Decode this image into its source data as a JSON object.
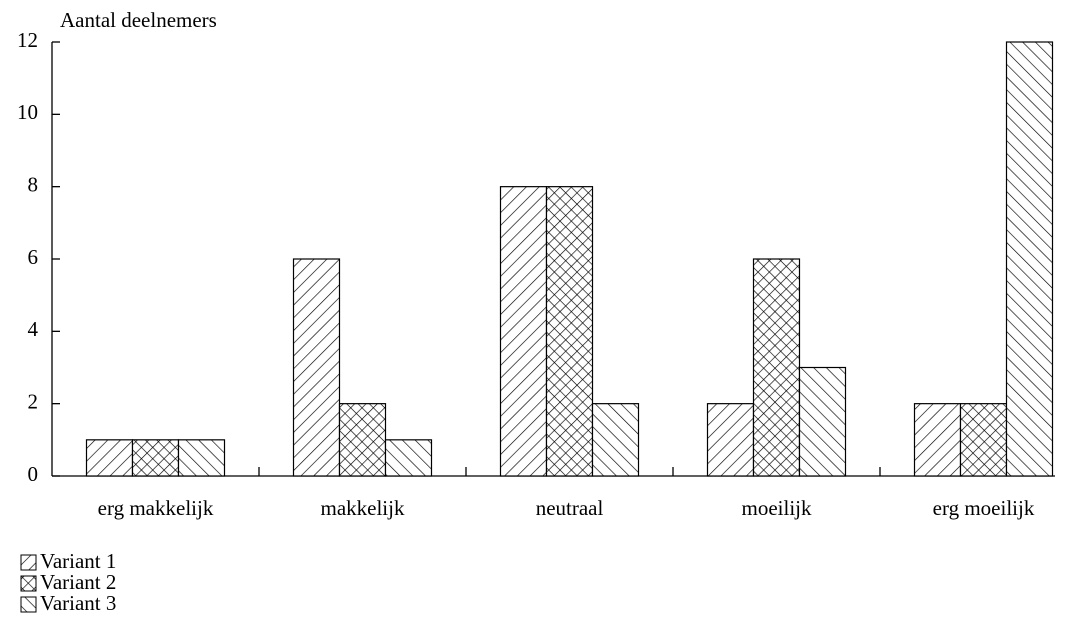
{
  "chart_data": {
    "type": "bar",
    "y_label": "Aantal deelnemers",
    "categories": [
      "erg makkelijk",
      "makkelijk",
      "neutraal",
      "moeilijk",
      "erg moeilijk"
    ],
    "series": [
      {
        "name": "Variant 1",
        "color": "#000000",
        "pattern": "diagonal",
        "values": [
          1,
          6,
          8,
          2,
          2
        ]
      },
      {
        "name": "Variant 2",
        "color": "#000000",
        "pattern": "crosshatch",
        "values": [
          1,
          2,
          8,
          6,
          2
        ]
      },
      {
        "name": "Variant 3",
        "color": "#000000",
        "pattern": "back-diagonal",
        "values": [
          1,
          1,
          2,
          3,
          12
        ]
      }
    ],
    "ylim": [
      0,
      12
    ],
    "yticks": [
      0,
      2,
      4,
      6,
      8,
      10,
      12
    ],
    "grid": false,
    "legend": "bottom-left"
  }
}
